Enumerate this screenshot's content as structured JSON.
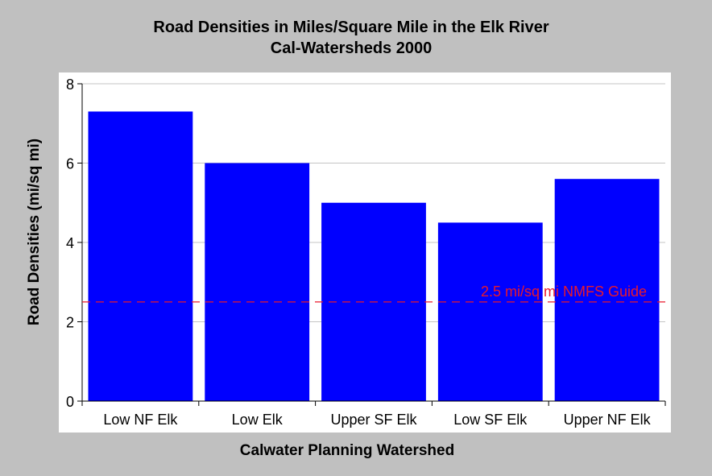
{
  "chart_data": {
    "type": "bar",
    "title": "Road Densities in Miles/Square Mile in the Elk River",
    "subtitle": "Cal-Watersheds 2000",
    "xlabel": "Calwater Planning Watershed",
    "ylabel": "Road Densities (mi/sq mi)",
    "categories": [
      "Low NF Elk",
      "Low Elk",
      "Upper SF Elk",
      "Low SF Elk",
      "Upper NF Elk"
    ],
    "values": [
      7.3,
      6.0,
      5.0,
      4.5,
      5.6
    ],
    "ylim": [
      0,
      8
    ],
    "yticks": [
      "0",
      "2",
      "4",
      "6",
      "8"
    ],
    "grid": true,
    "bar_color": "#0000ff",
    "reference_line": {
      "value": 2.5,
      "label": "2.5 mi/sq mi NMFS Guide",
      "color": "#e8192c",
      "style": "dashed"
    }
  }
}
